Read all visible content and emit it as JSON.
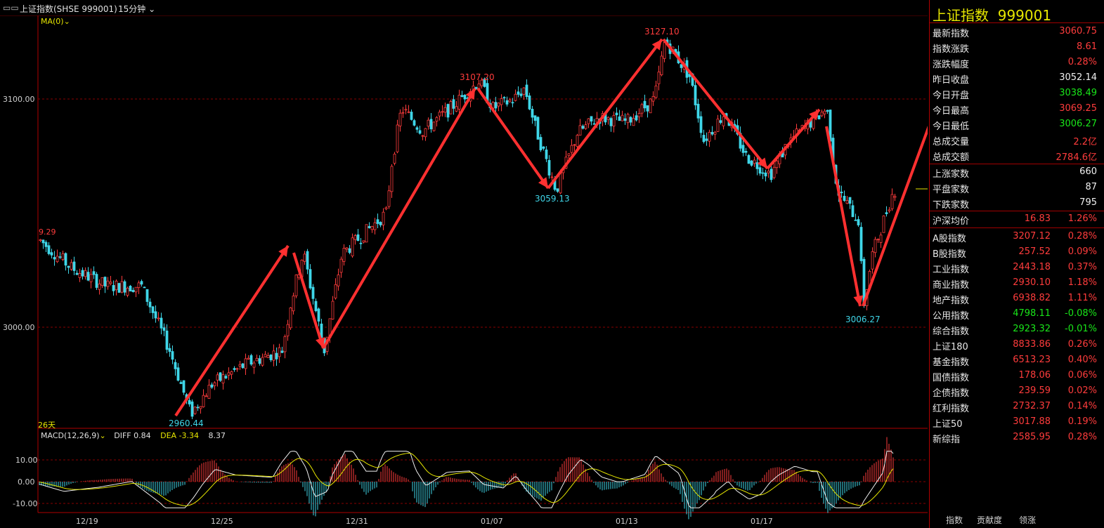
{
  "titlebar": {
    "icon": "window-toggle-icon",
    "title": "上证指数(SHSE 999001)",
    "period": "15分钟"
  },
  "main_chart": {
    "ma_label": "MA(0)",
    "days_label": "26天",
    "left_edge_value": "9.29",
    "y_ticks": [
      "3100.00",
      "3000.00"
    ],
    "annotations": [
      {
        "text": "3107.20",
        "color": "#ff3c3c"
      },
      {
        "text": "3127.10",
        "color": "#ff3c3c"
      },
      {
        "text": "3059.13",
        "color": "#3fd6e8"
      },
      {
        "text": "3006.27",
        "color": "#3fd6e8"
      },
      {
        "text": "2960.44",
        "color": "#3fd6e8"
      }
    ]
  },
  "macd": {
    "label": "MACD(12,26,9)",
    "diff": "DIFF 0.84",
    "dea": "DEA -3.34",
    "macd": "8.37",
    "y_ticks": [
      "10.00",
      "0.00",
      "-10.00"
    ]
  },
  "x_ticks": [
    "12/19",
    "12/25",
    "12/31",
    "01/07",
    "01/13",
    "01/17"
  ],
  "side_panel": {
    "title": "上证指数  999001",
    "stats": [
      {
        "label": "最新指数",
        "value": "3060.75",
        "color": "#ff3c3c"
      },
      {
        "label": "指数涨跌",
        "value": "8.61",
        "color": "#ff3c3c"
      },
      {
        "label": "涨跌幅度",
        "value": "0.28%",
        "color": "#ff3c3c"
      },
      {
        "label": "昨日收盘",
        "value": "3052.14",
        "color": "#f0f0f0"
      },
      {
        "label": "今日开盘",
        "value": "3038.49",
        "color": "#19e619"
      },
      {
        "label": "今日最高",
        "value": "3069.25",
        "color": "#ff3c3c"
      },
      {
        "label": "今日最低",
        "value": "3006.27",
        "color": "#19e619"
      },
      {
        "label": "总成交量",
        "value": "2.2亿",
        "color": "#ff3c3c"
      },
      {
        "label": "总成交额",
        "value": "2784.6亿",
        "color": "#ff3c3c"
      }
    ],
    "breadth": [
      {
        "label": "上涨家数",
        "value": "660"
      },
      {
        "label": "平盘家数",
        "value": "87"
      },
      {
        "label": "下跌家数",
        "value": "795"
      }
    ],
    "hushen": {
      "label": "沪深均价",
      "v1": "16.83",
      "v2": "1.26%"
    },
    "indices": [
      {
        "label": "A股指数",
        "v1": "3207.12",
        "v2": "0.28%",
        "color": "#ff3c3c"
      },
      {
        "label": "B股指数",
        "v1": "257.52",
        "v2": "0.09%",
        "color": "#ff3c3c"
      },
      {
        "label": "工业指数",
        "v1": "2443.18",
        "v2": "0.37%",
        "color": "#ff3c3c"
      },
      {
        "label": "商业指数",
        "v1": "2930.10",
        "v2": "1.18%",
        "color": "#ff3c3c"
      },
      {
        "label": "地产指数",
        "v1": "6938.82",
        "v2": "1.11%",
        "color": "#ff3c3c"
      },
      {
        "label": "公用指数",
        "v1": "4798.11",
        "v2": "-0.08%",
        "color": "#19e619"
      },
      {
        "label": "综合指数",
        "v1": "2923.32",
        "v2": "-0.01%",
        "color": "#19e619"
      },
      {
        "label": "上证180",
        "v1": "8833.86",
        "v2": "0.26%",
        "color": "#ff3c3c"
      },
      {
        "label": "基金指数",
        "v1": "6513.23",
        "v2": "0.40%",
        "color": "#ff3c3c"
      },
      {
        "label": "国债指数",
        "v1": "178.06",
        "v2": "0.06%",
        "color": "#ff3c3c"
      },
      {
        "label": "企债指数",
        "v1": "239.59",
        "v2": "0.02%",
        "color": "#ff3c3c"
      },
      {
        "label": "红利指数",
        "v1": "2732.37",
        "v2": "0.14%",
        "color": "#ff3c3c"
      },
      {
        "label": "上证50",
        "v1": "3017.88",
        "v2": "0.19%",
        "color": "#ff3c3c"
      },
      {
        "label": "新综指",
        "v1": "2585.95",
        "v2": "0.28%",
        "color": "#ff3c3c"
      }
    ]
  },
  "bottom_tabs": [
    "指数",
    "贡献度",
    "领涨"
  ]
}
